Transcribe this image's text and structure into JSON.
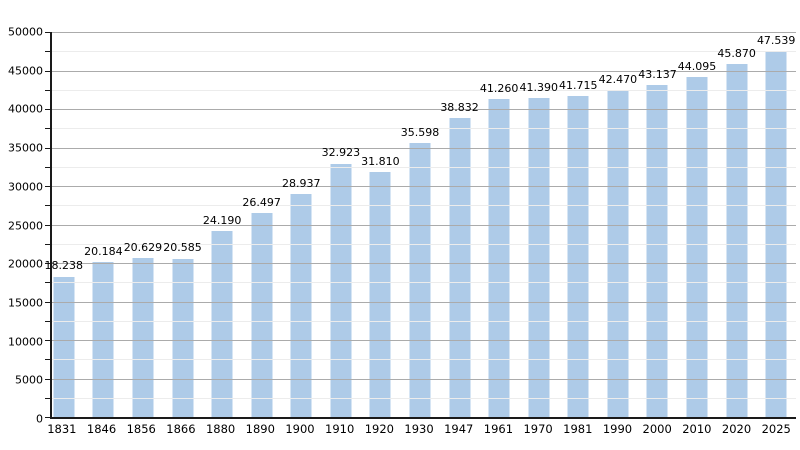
{
  "chart_data": {
    "type": "bar",
    "title": "",
    "xlabel": "",
    "ylabel": "",
    "categories": [
      "1831",
      "1846",
      "1856",
      "1866",
      "1880",
      "1890",
      "1900",
      "1910",
      "1920",
      "1930",
      "1947",
      "1961",
      "1970",
      "1981",
      "1990",
      "2000",
      "2010",
      "2020",
      "2025"
    ],
    "values": [
      18238,
      20184,
      20629,
      20585,
      24190,
      26497,
      28937,
      32923,
      31810,
      35598,
      38832,
      41260,
      41390,
      41715,
      42470,
      43137,
      44095,
      45870,
      47539
    ],
    "value_labels": [
      "18.238",
      "20.184",
      "20.629",
      "20.585",
      "24.190",
      "26.497",
      "28.937",
      "32.923",
      "31.810",
      "35.598",
      "38.832",
      "41.260",
      "41.390",
      "41.715",
      "42.470",
      "43.137",
      "44.095",
      "45.870",
      "47.539"
    ],
    "ylim": [
      0,
      50000
    ],
    "y_major_step": 5000,
    "y_minor_step": 2500,
    "y_tick_labels": [
      "0",
      "5000",
      "10000",
      "15000",
      "20000",
      "25000",
      "30000",
      "35000",
      "40000",
      "45000",
      "50000"
    ],
    "grid": true,
    "legend_position": "none",
    "colors": {
      "bar_fill": "#aecbe8",
      "major_gridline": "#ababab",
      "minor_gridline": "#ececec",
      "axis": "#1a1a1a",
      "text": "#000000",
      "background": "#ffffff"
    }
  }
}
